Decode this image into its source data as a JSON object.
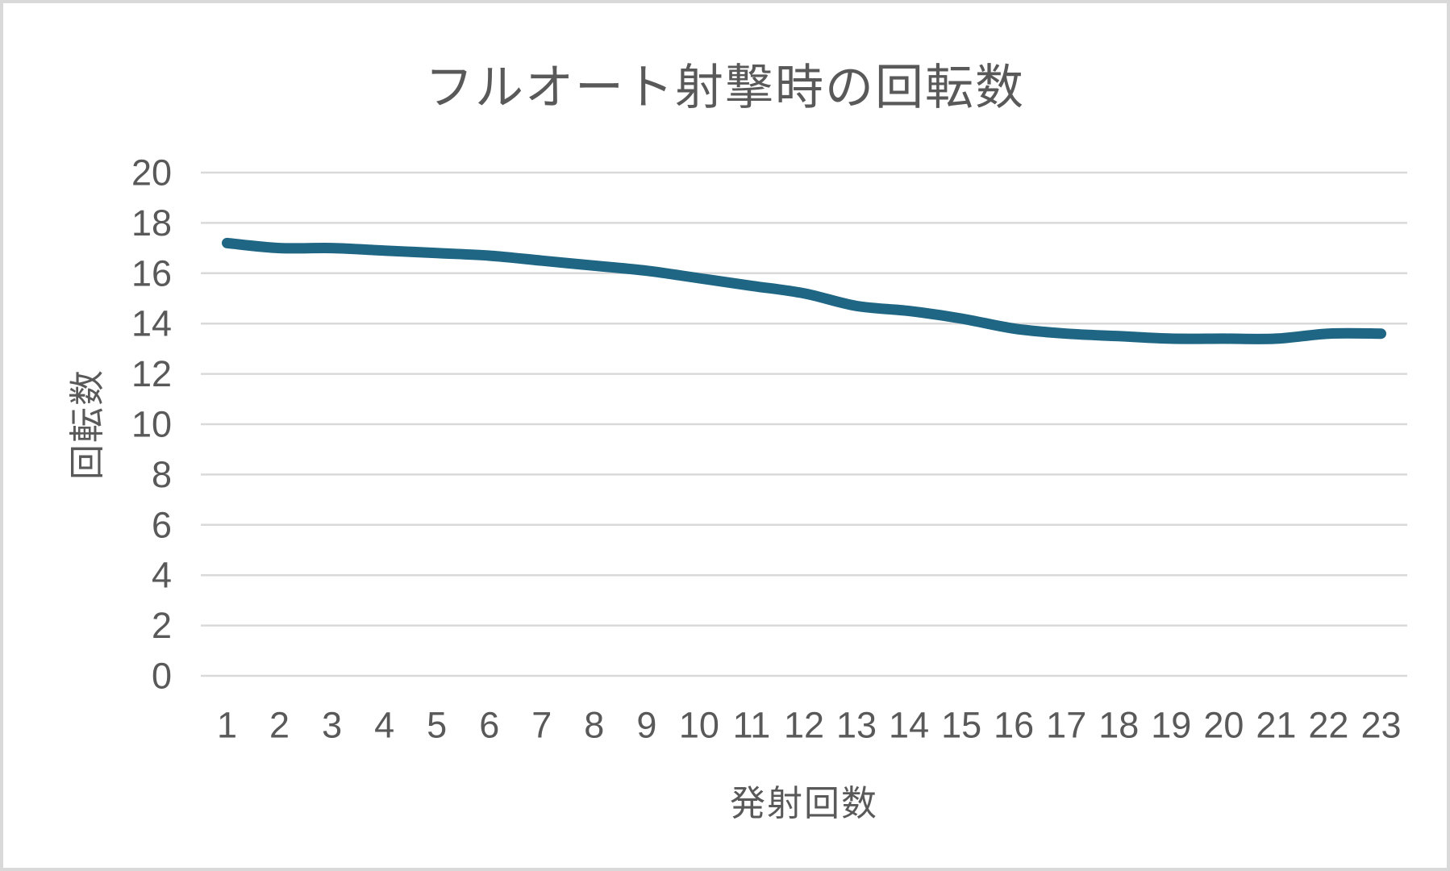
{
  "frame": {
    "background_color": "#ffffff",
    "border_color": "#d9d9d9"
  },
  "chart_data": {
    "type": "line",
    "title": "フルオート射撃時の回転数",
    "xlabel": "発射回数",
    "ylabel": "回転数",
    "categories": [
      1,
      2,
      3,
      4,
      5,
      6,
      7,
      8,
      9,
      10,
      11,
      12,
      13,
      14,
      15,
      16,
      17,
      18,
      19,
      20,
      21,
      22,
      23
    ],
    "series": [
      {
        "name": "回転数",
        "values": [
          17.2,
          17.0,
          17.0,
          16.9,
          16.8,
          16.7,
          16.5,
          16.3,
          16.1,
          15.8,
          15.5,
          15.2,
          14.7,
          14.5,
          14.2,
          13.8,
          13.6,
          13.5,
          13.4,
          13.4,
          13.4,
          13.6,
          13.6
        ],
        "color": "#1f6684",
        "smooth": true
      }
    ],
    "ylim": [
      0,
      20
    ],
    "ytick_step": 2,
    "grid": "horizontal",
    "gridline_color": "#d9d9d9",
    "tick_label_color": "#595959",
    "title_color": "#595959",
    "legend": "none"
  }
}
